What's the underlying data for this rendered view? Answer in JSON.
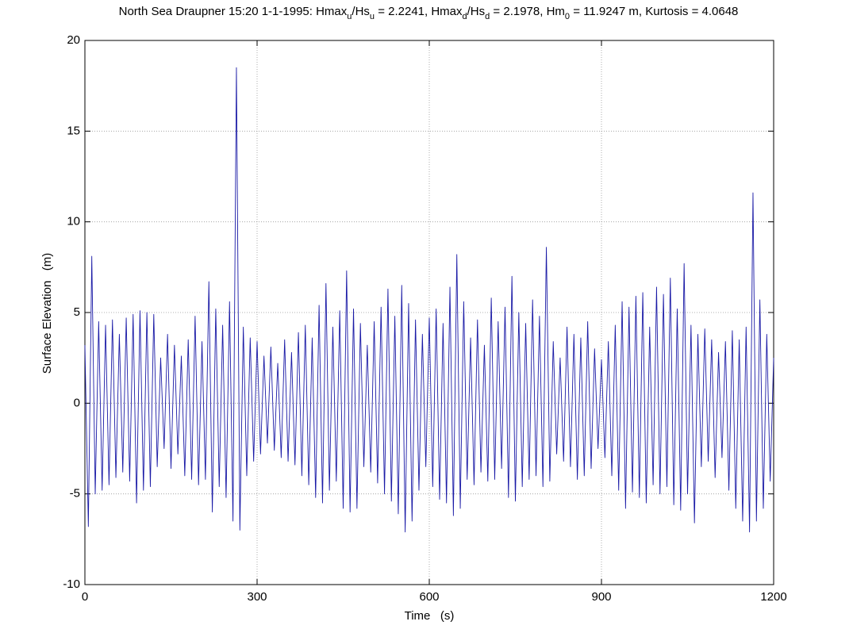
{
  "chart_data": {
    "type": "line",
    "title": [
      "North Sea Draupner 15:20 1-1-1995: Hmax",
      "u",
      "/Hs",
      "u",
      " = 2.2241, Hmax",
      "d",
      "/Hs",
      "d",
      " = 2.1978, Hm",
      "0",
      " = 11.9247 m, Kurtosis = 4.0648"
    ],
    "x_label": "Time   (s)",
    "y_label": "Surface Elevation   (m)",
    "x": [
      0,
      6,
      12,
      18,
      24,
      30,
      36,
      42,
      48,
      54,
      60,
      66,
      72,
      78,
      84,
      90,
      96,
      102,
      108,
      114,
      120,
      126,
      132,
      138,
      144,
      150,
      156,
      162,
      168,
      174,
      180,
      186,
      192,
      198,
      204,
      210,
      216,
      222,
      228,
      234,
      240,
      246,
      252,
      258,
      264,
      270,
      276,
      282,
      288,
      294,
      300,
      306,
      312,
      318,
      324,
      330,
      336,
      342,
      348,
      354,
      360,
      366,
      372,
      378,
      384,
      390,
      396,
      402,
      408,
      414,
      420,
      426,
      432,
      438,
      444,
      450,
      456,
      462,
      468,
      474,
      480,
      486,
      492,
      498,
      504,
      510,
      516,
      522,
      528,
      534,
      540,
      546,
      552,
      558,
      564,
      570,
      576,
      582,
      588,
      594,
      600,
      606,
      612,
      618,
      624,
      630,
      636,
      642,
      648,
      654,
      660,
      666,
      672,
      678,
      684,
      690,
      696,
      702,
      708,
      714,
      720,
      726,
      732,
      738,
      744,
      750,
      756,
      762,
      768,
      774,
      780,
      786,
      792,
      798,
      804,
      810,
      816,
      822,
      828,
      834,
      840,
      846,
      852,
      858,
      864,
      870,
      876,
      882,
      888,
      894,
      900,
      906,
      912,
      918,
      924,
      930,
      936,
      942,
      948,
      954,
      960,
      966,
      972,
      978,
      984,
      990,
      996,
      1002,
      1008,
      1014,
      1020,
      1026,
      1032,
      1038,
      1044,
      1050,
      1056,
      1062,
      1068,
      1074,
      1080,
      1086,
      1092,
      1098,
      1104,
      1110,
      1116,
      1122,
      1128,
      1134,
      1140,
      1146,
      1152,
      1158,
      1164,
      1170,
      1176,
      1182,
      1188,
      1194,
      1200
    ],
    "series": [
      {
        "color": "#1a1aa6",
        "values": [
          3.2,
          -6.8,
          8.1,
          -5,
          4.5,
          -4.8,
          4.3,
          -4.5,
          4.6,
          -4.1,
          3.8,
          -3.8,
          4.7,
          -4.3,
          4.9,
          -5.5,
          5.1,
          -4.8,
          5,
          -4.6,
          4.9,
          -3.5,
          2.5,
          -2.5,
          3.8,
          -3.6,
          3.2,
          -2.8,
          2.6,
          -4,
          3.5,
          -4.2,
          4.8,
          -4.5,
          3.4,
          -4.2,
          6.7,
          -6,
          5.2,
          -4.6,
          4.3,
          -5.2,
          5.6,
          -6.5,
          18.5,
          -7,
          4.2,
          -4,
          3.6,
          -3.2,
          3.4,
          -2.8,
          2.6,
          -2.2,
          3.1,
          -2.6,
          2.2,
          -3,
          3.5,
          -3.2,
          2.8,
          -3.4,
          3.9,
          -4,
          4.3,
          -4.5,
          3.6,
          -5.2,
          5.4,
          -5.5,
          6.6,
          -4.8,
          4.2,
          -4.3,
          5.1,
          -5.8,
          7.3,
          -6,
          5.2,
          -5.8,
          4.4,
          -3.5,
          3.2,
          -3.8,
          4.5,
          -4.4,
          5.3,
          -5,
          6.3,
          -5.4,
          4.8,
          -6.1,
          6.5,
          -7.1,
          5.5,
          -6.5,
          4.6,
          -4.8,
          3.8,
          -3.5,
          4.7,
          -4.6,
          5.2,
          -5.3,
          4.4,
          -5.5,
          6.4,
          -6.2,
          8.2,
          -5.8,
          5.6,
          -4.2,
          3.6,
          -4.5,
          4.6,
          -3.8,
          3.2,
          -4.3,
          5.8,
          -4.2,
          4.5,
          -3.6,
          5.3,
          -5.2,
          7,
          -5.4,
          5,
          -4.6,
          4.4,
          -4.2,
          5.7,
          -4,
          4.8,
          -4.6,
          8.6,
          -4.3,
          3.4,
          -2.8,
          2.5,
          -3.2,
          4.2,
          -3.5,
          3.8,
          -4.2,
          3.6,
          -4,
          4.5,
          -3.6,
          3,
          -2.5,
          2.4,
          -3,
          3.4,
          -4,
          4.3,
          -4.8,
          5.6,
          -5.8,
          5.3,
          -4.9,
          5.9,
          -5.2,
          6.1,
          -5.5,
          4.2,
          -4.5,
          6.4,
          -5,
          6,
          -4.6,
          6.9,
          -5.6,
          5.2,
          -5.9,
          7.7,
          -5,
          4.3,
          -6.6,
          3.8,
          -3.5,
          4.1,
          -3.2,
          3.5,
          -4.1,
          2.8,
          -3,
          3.4,
          -4.8,
          4,
          -5.8,
          3.5,
          -6.5,
          4.2,
          -7.1,
          11.6,
          -6.5,
          5.7,
          -5.8,
          3.8,
          -4.3,
          2.5
        ]
      }
    ],
    "xlim": [
      0,
      1200
    ],
    "xticks": [
      0,
      300,
      600,
      900,
      1200
    ],
    "ylim": [
      -10,
      20
    ],
    "yticks": [
      -10,
      -5,
      0,
      5,
      10,
      15,
      20
    ],
    "grid": true
  }
}
